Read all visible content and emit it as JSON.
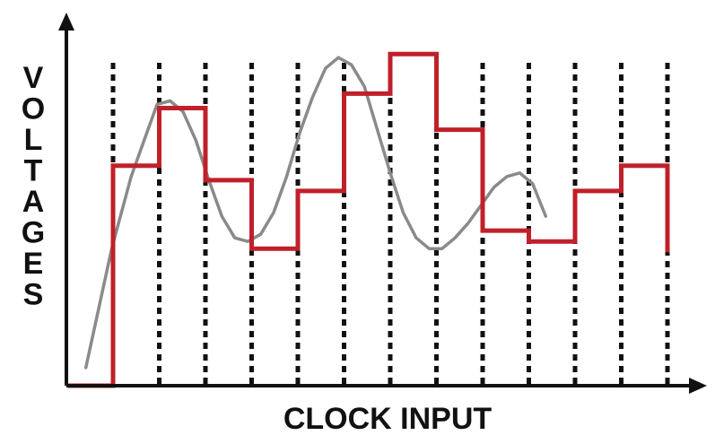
{
  "figure": {
    "y_axis_label": "VOLTAGES",
    "x_axis_label": "CLOCK INPUT"
  },
  "colors": {
    "axis": "#111111",
    "clock_lines": "#111111",
    "analog_signal": "#8a8a8a",
    "sampled_signal": "#c0202a"
  },
  "diagram_data": {
    "clock_ticks": 13,
    "analog_signal": [
      [
        0.03,
        0.05
      ],
      [
        0.07,
        0.38
      ],
      [
        0.1,
        0.58
      ],
      [
        0.12,
        0.68
      ],
      [
        0.14,
        0.78
      ],
      [
        0.16,
        0.79
      ],
      [
        0.18,
        0.76
      ],
      [
        0.2,
        0.68
      ],
      [
        0.22,
        0.57
      ],
      [
        0.24,
        0.47
      ],
      [
        0.26,
        0.41
      ],
      [
        0.28,
        0.4
      ],
      [
        0.3,
        0.42
      ],
      [
        0.32,
        0.48
      ],
      [
        0.34,
        0.58
      ],
      [
        0.36,
        0.7
      ],
      [
        0.38,
        0.8
      ],
      [
        0.4,
        0.88
      ],
      [
        0.42,
        0.91
      ],
      [
        0.44,
        0.89
      ],
      [
        0.46,
        0.83
      ],
      [
        0.48,
        0.71
      ],
      [
        0.5,
        0.59
      ],
      [
        0.52,
        0.48
      ],
      [
        0.54,
        0.41
      ],
      [
        0.56,
        0.38
      ],
      [
        0.58,
        0.38
      ],
      [
        0.6,
        0.41
      ],
      [
        0.62,
        0.45
      ],
      [
        0.64,
        0.5
      ],
      [
        0.66,
        0.55
      ],
      [
        0.68,
        0.58
      ],
      [
        0.7,
        0.59
      ],
      [
        0.72,
        0.56
      ],
      [
        0.74,
        0.47
      ]
    ],
    "sampled_levels": [
      0.0,
      0.61,
      0.77,
      0.57,
      0.38,
      0.54,
      0.81,
      0.92,
      0.71,
      0.43,
      0.4,
      0.54,
      0.61
    ]
  }
}
